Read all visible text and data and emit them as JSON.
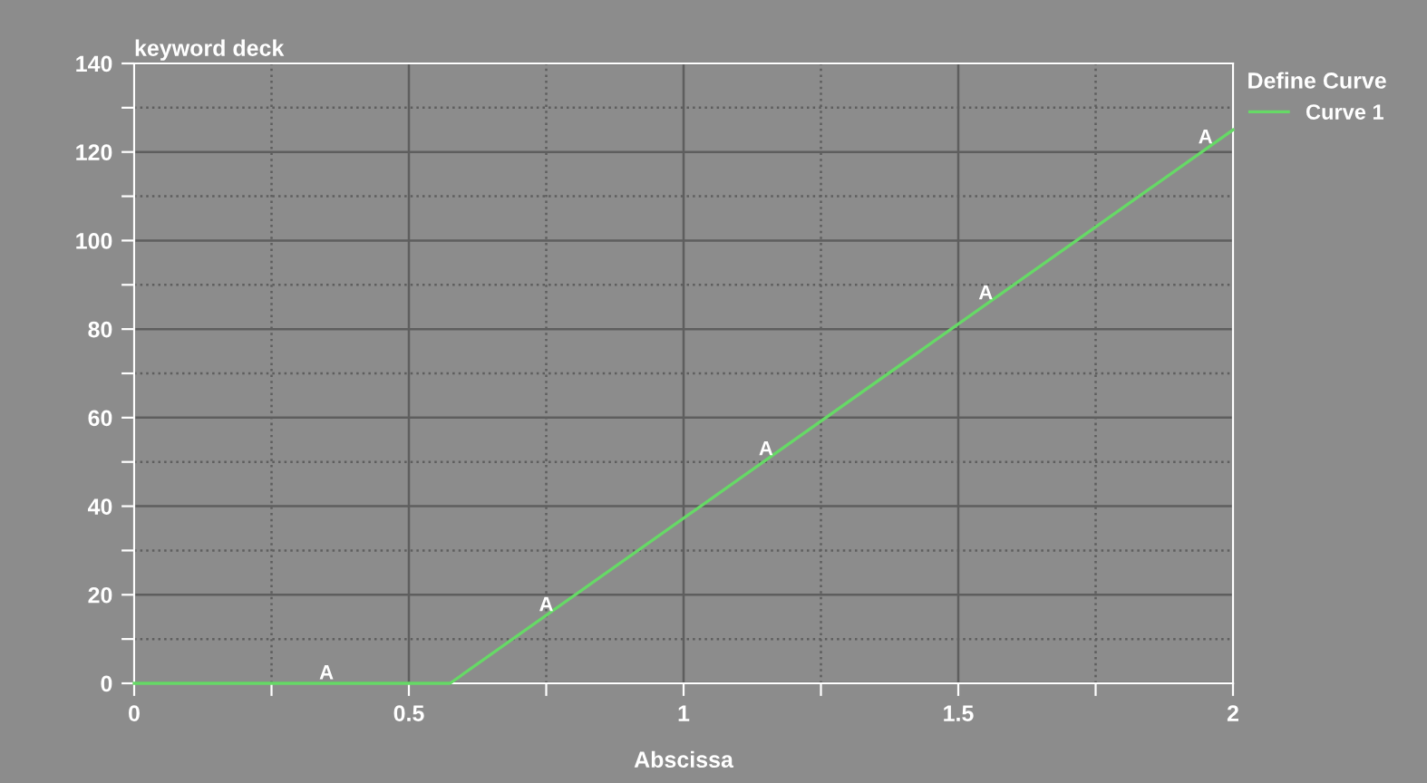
{
  "chart_data": {
    "type": "line",
    "title": "keyword deck",
    "xlabel": "Abscissa",
    "legend_title": "Define Curve",
    "series": [
      {
        "name": "Curve 1",
        "color": "#66d966",
        "x": [
          0,
          0.575,
          2
        ],
        "values": [
          0,
          0,
          125
        ]
      }
    ],
    "annotations": [
      {
        "text": "A",
        "x": 0.35,
        "y": 0
      },
      {
        "text": "A",
        "x": 0.75,
        "y": 15.4
      },
      {
        "text": "A",
        "x": 1.15,
        "y": 50.6
      },
      {
        "text": "A",
        "x": 1.55,
        "y": 85.8
      },
      {
        "text": "A",
        "x": 1.95,
        "y": 121
      }
    ],
    "xlim": [
      0,
      2
    ],
    "ylim": [
      0,
      140
    ],
    "xticks": [
      0,
      {
        "value": 0.25,
        "label": null
      },
      0.5,
      {
        "value": 0.75,
        "label": null
      },
      1,
      {
        "value": 1.25,
        "label": null
      },
      1.5,
      {
        "value": 1.75,
        "label": null
      },
      2
    ],
    "yticks": [
      0,
      {
        "value": 10,
        "label": null
      },
      20,
      {
        "value": 30,
        "label": null
      },
      40,
      {
        "value": 50,
        "label": null
      },
      60,
      {
        "value": 70,
        "label": null
      },
      80,
      {
        "value": 90,
        "label": null
      },
      100,
      {
        "value": 110,
        "label": null
      },
      120,
      {
        "value": 130,
        "label": null
      },
      140
    ],
    "grid": true,
    "legend": "right",
    "marker": "none",
    "line_style": "solid"
  }
}
